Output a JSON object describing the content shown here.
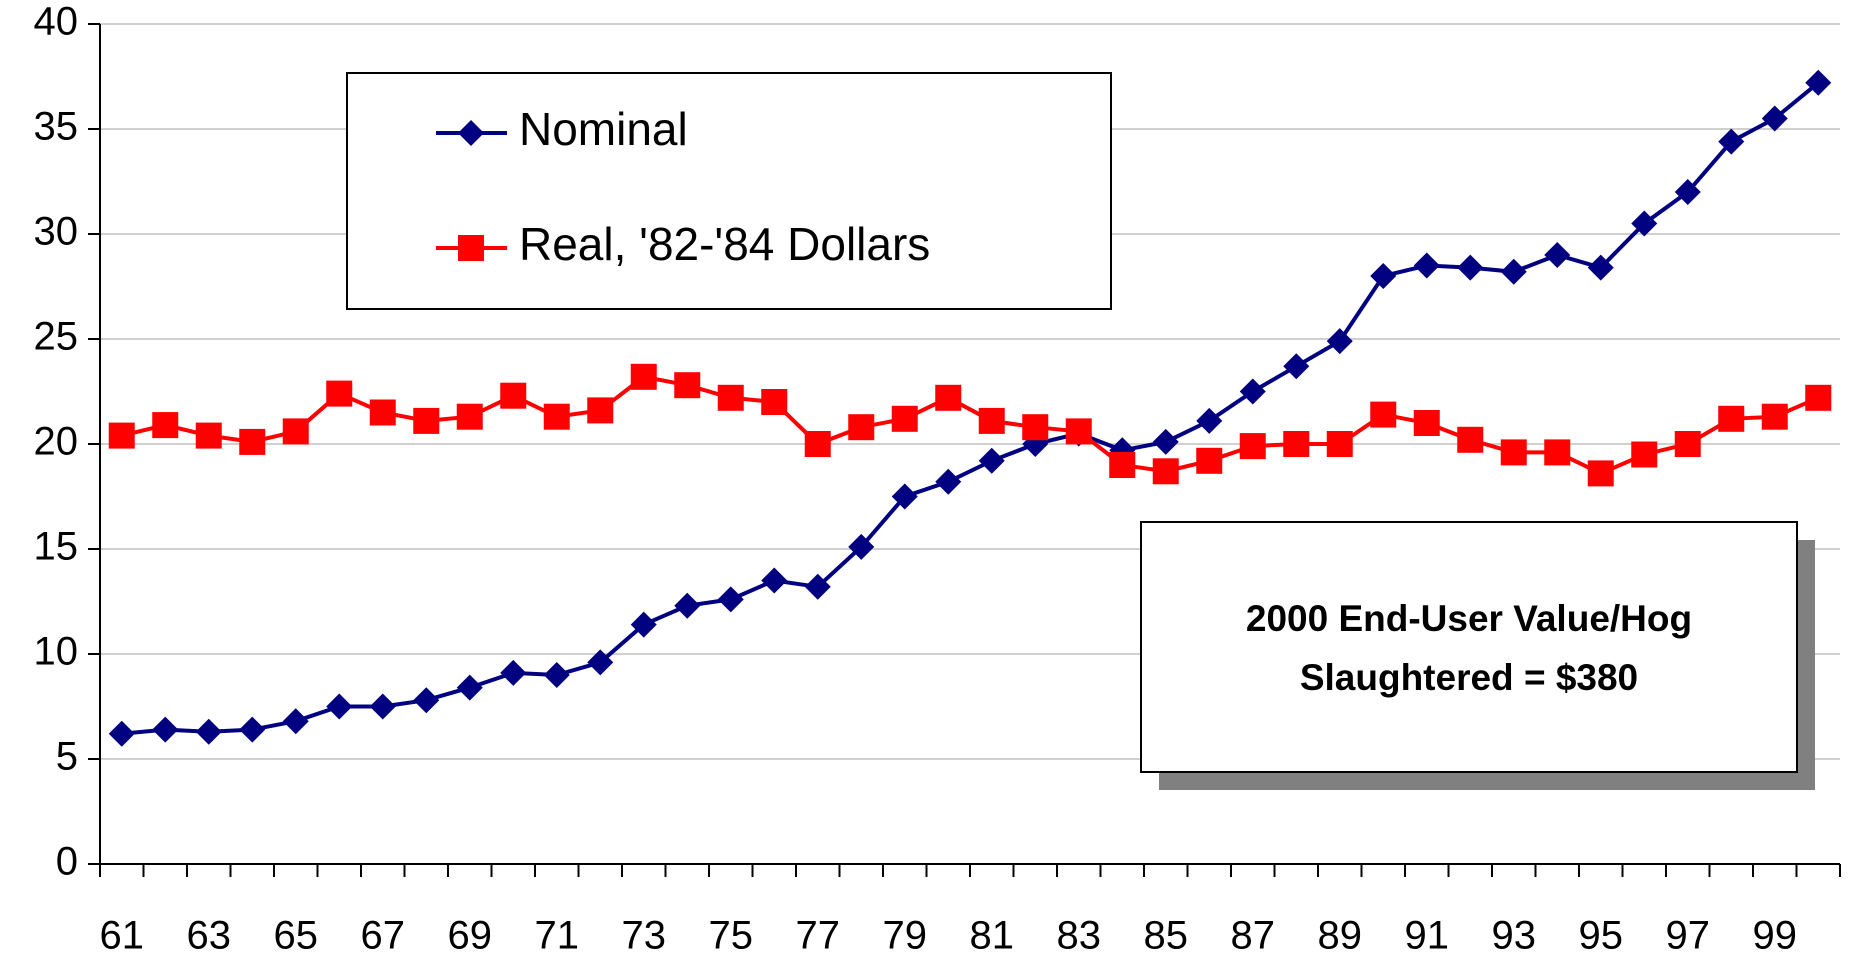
{
  "chart_data": {
    "type": "line",
    "categories": [
      "61",
      null,
      "63",
      null,
      "65",
      null,
      "67",
      null,
      "69",
      null,
      "71",
      null,
      "73",
      null,
      "75",
      null,
      "77",
      null,
      "79",
      null,
      "81",
      null,
      "83",
      null,
      "85",
      null,
      "87",
      null,
      "89",
      null,
      "91",
      null,
      "93",
      null,
      "95",
      null,
      "97",
      null,
      "99",
      null
    ],
    "series": [
      {
        "name": "Nominal",
        "color": "#000080",
        "marker": "diamond",
        "values": [
          6.2,
          6.4,
          6.3,
          6.4,
          6.8,
          7.5,
          7.5,
          7.8,
          8.4,
          9.1,
          9.0,
          9.6,
          11.4,
          12.3,
          12.6,
          13.5,
          13.2,
          15.1,
          17.5,
          18.2,
          19.2,
          20.0,
          20.5,
          19.7,
          20.1,
          21.1,
          22.5,
          23.7,
          24.9,
          28.0,
          28.5,
          28.4,
          28.2,
          29.0,
          28.4,
          30.5,
          32.0,
          34.4,
          35.5,
          37.2
        ]
      },
      {
        "name": "Real, '82-'84 Dollars",
        "color": "#ff0000",
        "marker": "square",
        "values": [
          20.4,
          20.9,
          20.4,
          20.1,
          20.6,
          22.4,
          21.5,
          21.1,
          21.3,
          22.3,
          21.3,
          21.6,
          23.2,
          22.8,
          22.2,
          22.0,
          20.0,
          20.8,
          21.2,
          22.2,
          21.1,
          20.8,
          20.6,
          19.0,
          18.7,
          19.2,
          19.9,
          20.0,
          20.0,
          21.4,
          21.0,
          20.2,
          19.6,
          19.6,
          18.6,
          19.5,
          20.0,
          21.2,
          21.3,
          22.2
        ]
      }
    ],
    "ylim": [
      0,
      40
    ],
    "yticks": [
      0,
      5,
      10,
      15,
      20,
      25,
      30,
      35,
      40
    ],
    "grid": true,
    "legend": "top-left",
    "annotation": [
      "2000 End-User Value/Hog",
      "Slaughtered = $380"
    ]
  }
}
